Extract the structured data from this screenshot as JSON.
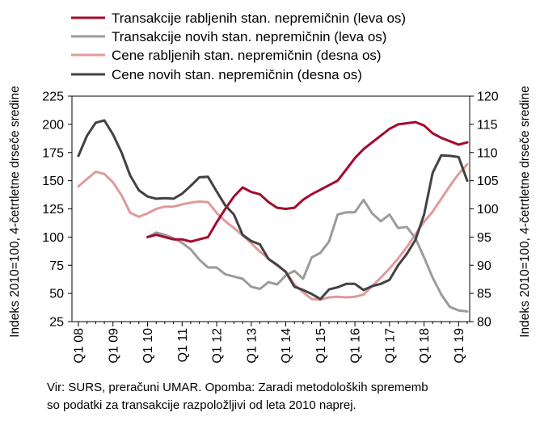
{
  "chart_data": {
    "type": "line",
    "y_left_label": "Indeks 2010=100, 4-četrtletne drseče sredine",
    "y_right_label": "Indeks 2010=100, 4-četrtletne drseče sredine",
    "ylim_left": [
      25,
      225
    ],
    "ylim_right": [
      80,
      120
    ],
    "yticks_left": [
      "25",
      "50",
      "75",
      "100",
      "125",
      "150",
      "175",
      "200",
      "225"
    ],
    "yticks_right": [
      "80",
      "85",
      "90",
      "95",
      "100",
      "105",
      "110",
      "115",
      "120"
    ],
    "x_tick_labels": [
      "Q1 08",
      "Q1 09",
      "Q1 10",
      "Q1 11",
      "Q1 12",
      "Q1 13",
      "Q1 14",
      "Q1 15",
      "Q1 16",
      "Q1 17",
      "Q1 18",
      "Q1 19"
    ],
    "x_start": "Q1 08",
    "x_end": "Q4 19",
    "grid": false,
    "legend_position": "top",
    "series": [
      {
        "name": "Transakcije rabljenih stan. nepremičnin (leva os)",
        "axis": "left",
        "color": "#a50a2c",
        "values": [
          null,
          null,
          null,
          null,
          null,
          null,
          null,
          null,
          100,
          102,
          100,
          98,
          98,
          96,
          98,
          100,
          113,
          125,
          136,
          144,
          140,
          138,
          131,
          126,
          125,
          126,
          133,
          138,
          142,
          146,
          150,
          160,
          170,
          178,
          184,
          190,
          196,
          200,
          201,
          202,
          199,
          192,
          188,
          185,
          182,
          184
        ]
      },
      {
        "name": "Transakcije novih stan. nepremičnin (leva os)",
        "axis": "left",
        "color": "#9b9b9b",
        "values": [
          null,
          null,
          null,
          null,
          null,
          null,
          null,
          null,
          100,
          104,
          102,
          99,
          95,
          89,
          80,
          73,
          73,
          67,
          65,
          63,
          56,
          54,
          60,
          58,
          66,
          70,
          63,
          82,
          86,
          96,
          120,
          122,
          122,
          133,
          121,
          114,
          120,
          108,
          109,
          99,
          82,
          64,
          49,
          38,
          35,
          34
        ]
      },
      {
        "name": "Cene rabljenih stan. nepremičnin (desna os)",
        "axis": "right",
        "color": "#e09a9c",
        "values": [
          104,
          105.3,
          106.6,
          106.2,
          104.7,
          102.4,
          99.3,
          98.6,
          99.2,
          100,
          100.4,
          100.4,
          100.8,
          101.1,
          101.3,
          101.2,
          99.3,
          97.8,
          96.6,
          95.3,
          93.9,
          92.4,
          91.2,
          89.9,
          88.9,
          86.6,
          85.2,
          84.0,
          83.9,
          84.3,
          84.4,
          84.3,
          84.4,
          84.8,
          86.3,
          87.8,
          89.4,
          91.2,
          93.2,
          95.5,
          97.7,
          99.5,
          101.8,
          104.1,
          106.2,
          107.9
        ]
      },
      {
        "name": "Cene novih stan. nepremičnin (desna os)",
        "axis": "right",
        "color": "#424242",
        "values": [
          109.4,
          113,
          115.3,
          115.7,
          113.2,
          110,
          105.9,
          103.3,
          102.2,
          101.8,
          101.9,
          101.8,
          102.7,
          104.1,
          105.6,
          105.7,
          103.1,
          100.6,
          99.0,
          95.4,
          94.3,
          93.7,
          91.1,
          90.1,
          88.8,
          86.2,
          85.6,
          84.9,
          84.0,
          85.7,
          86.1,
          86.7,
          86.7,
          85.6,
          86.3,
          86.7,
          87.4,
          90.0,
          92.0,
          94.5,
          99.0,
          106.4,
          109.5,
          109.4,
          109.2,
          105.0
        ]
      }
    ]
  },
  "note_line1": "Vir: SURS, preračuni UMAR. Opomba: Zaradi metodoloških sprememb",
  "note_line2": "so podatki za transakcije razpoložljivi od leta 2010 naprej."
}
